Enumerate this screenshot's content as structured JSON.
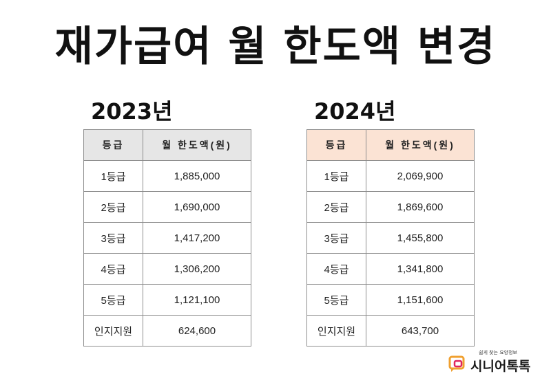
{
  "title": "재가급여 월 한도액 변경",
  "tables": [
    {
      "year": "2023년",
      "header": [
        "등급",
        "월 한도액(원)"
      ],
      "rows": [
        [
          "1등급",
          "1,885,000"
        ],
        [
          "2등급",
          "1,690,000"
        ],
        [
          "3등급",
          "1,417,200"
        ],
        [
          "4등급",
          "1,306,200"
        ],
        [
          "5등급",
          "1,121,100"
        ],
        [
          "인지지원",
          "624,600"
        ]
      ]
    },
    {
      "year": "2024년",
      "header": [
        "등급",
        "월 한도액(원)"
      ],
      "rows": [
        [
          "1등급",
          "2,069,900"
        ],
        [
          "2등급",
          "1,869,600"
        ],
        [
          "3등급",
          "1,455,800"
        ],
        [
          "4등급",
          "1,341,800"
        ],
        [
          "5등급",
          "1,151,600"
        ],
        [
          "인지지원",
          "643,700"
        ]
      ]
    }
  ],
  "logo": {
    "tagline": "쉽게 찾는 요양정보",
    "name": "시니어톡톡",
    "accent_orange": "#f0a030",
    "accent_red": "#e0245e"
  },
  "colors": {
    "header_2023": "#e6e6e6",
    "header_2024": "#fbe3d4"
  }
}
